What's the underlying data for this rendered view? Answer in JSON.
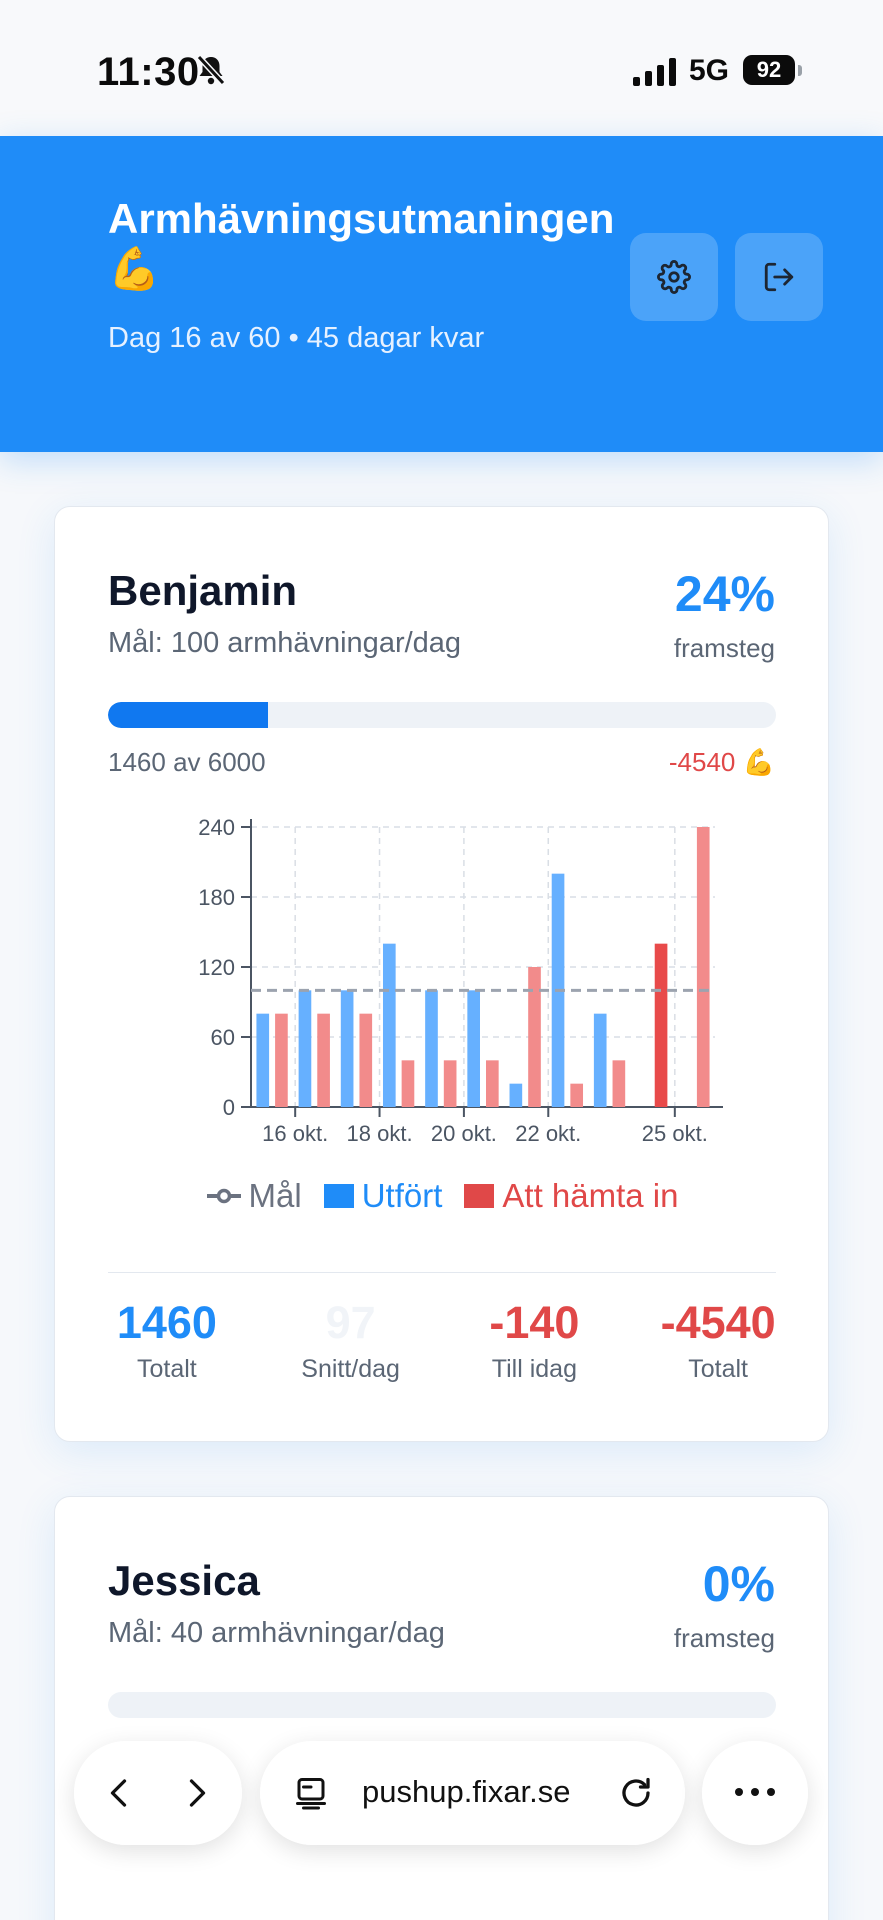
{
  "status_bar": {
    "time": "11:30",
    "network": "5G",
    "battery": "92"
  },
  "header": {
    "title": "Armhävningsutmaningen 💪",
    "subtitle": "Dag 16 av 60 • 45 dagar kvar",
    "settings_icon": "gear-icon",
    "logout_icon": "logout-icon"
  },
  "participants": [
    {
      "name": "Benjamin",
      "goal": "Mål: 100 armhävningar/dag",
      "percent": "24%",
      "percent_label": "framsteg",
      "progress_fraction": 0.24,
      "count_text": "1460 av 6000",
      "remaining_text": "-4540 💪",
      "stats": [
        {
          "value": "1460",
          "label": "Totalt",
          "color": "#1f8cf8"
        },
        {
          "value": "97",
          "label": "Snitt/dag",
          "color": "#f1f4f8"
        },
        {
          "value": "-140",
          "label": "Till idag",
          "color": "#e04848"
        },
        {
          "value": "-4540",
          "label": "Totalt",
          "color": "#e04848"
        }
      ]
    },
    {
      "name": "Jessica",
      "goal": "Mål: 40 armhävningar/dag",
      "percent": "0%",
      "percent_label": "framsteg"
    }
  ],
  "chart_data": {
    "type": "bar",
    "x_tick_labels": [
      "16 okt.",
      "18 okt.",
      "20 okt.",
      "22 okt.",
      "25 okt."
    ],
    "y_ticks": [
      0,
      60,
      120,
      180,
      240
    ],
    "ylim": [
      0,
      240
    ],
    "goal_line": 100,
    "series": [
      {
        "name": "Utfört",
        "color": "#66b0ff",
        "values": [
          80,
          100,
          100,
          140,
          100,
          100,
          20,
          200,
          80,
          0,
          0
        ]
      },
      {
        "name": "Att hämta in",
        "color": "#f28b8b",
        "values": [
          80,
          80,
          80,
          40,
          40,
          40,
          120,
          20,
          40,
          140,
          240
        ]
      }
    ],
    "legend": [
      "Mål",
      "Utfört",
      "Att hämta in"
    ],
    "legend_position": "bottom"
  },
  "browser": {
    "url": "pushup.fixar.se"
  },
  "colors": {
    "accent": "#1f8cf8",
    "negative": "#e04848"
  }
}
